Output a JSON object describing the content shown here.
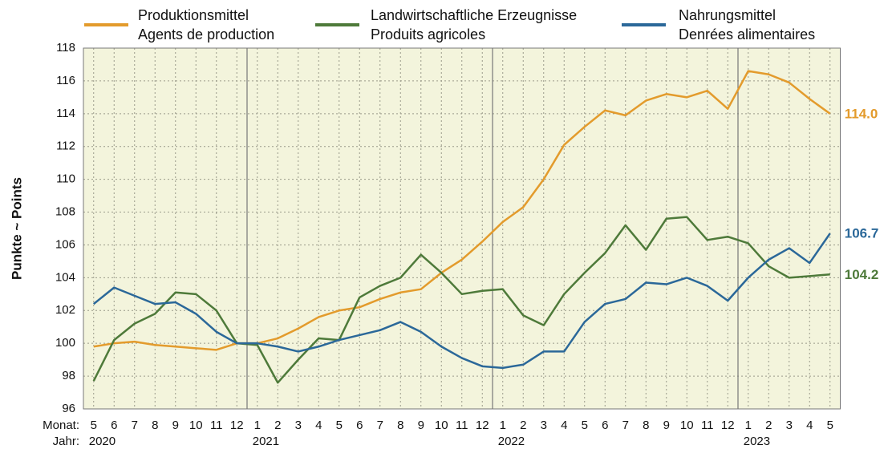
{
  "chart_data": {
    "type": "line",
    "ylabel": "Punkte  ~  Points",
    "xlabel_month": "Monat:",
    "xlabel_year": "Jahr:",
    "categories": [
      5,
      6,
      7,
      8,
      9,
      10,
      11,
      12,
      1,
      2,
      3,
      4,
      5,
      6,
      7,
      8,
      9,
      10,
      11,
      12,
      1,
      2,
      3,
      4,
      5,
      6,
      7,
      8,
      9,
      10,
      11,
      12,
      1,
      2,
      3,
      4,
      5
    ],
    "years": [
      "2020",
      null,
      null,
      null,
      null,
      null,
      null,
      null,
      "2021",
      null,
      null,
      null,
      null,
      null,
      null,
      null,
      null,
      null,
      null,
      null,
      "2022",
      null,
      null,
      null,
      null,
      null,
      null,
      null,
      null,
      null,
      null,
      null,
      "2023",
      null,
      null,
      null,
      null
    ],
    "ylim": [
      96,
      118
    ],
    "yticks": [
      96,
      98,
      100,
      102,
      104,
      106,
      108,
      110,
      112,
      114,
      116,
      118
    ],
    "grid": true,
    "series": [
      {
        "name": "Produktionsmittel",
        "name_fr": "Agents de production",
        "color": "#e39b2c",
        "values": [
          99.8,
          100.0,
          100.1,
          99.9,
          99.8,
          99.7,
          99.6,
          100.0,
          100.0,
          100.3,
          100.9,
          101.6,
          102.0,
          102.2,
          102.7,
          103.1,
          103.3,
          104.3,
          105.1,
          106.2,
          107.4,
          108.3,
          110.0,
          112.1,
          113.2,
          114.2,
          113.9,
          114.8,
          115.2,
          115.0,
          115.4,
          114.3,
          116.6,
          116.4,
          115.9,
          114.9,
          114.0
        ],
        "value_labels": [
          null,
          null,
          null,
          null,
          null,
          null,
          null,
          null,
          null,
          null,
          null,
          null,
          null,
          null,
          null,
          null,
          null,
          null,
          null,
          null,
          null,
          null,
          null,
          null,
          null,
          null,
          null,
          null,
          null,
          null,
          null,
          null,
          null,
          null,
          null,
          null,
          "114.0"
        ]
      },
      {
        "name": "Landwirtschaftliche Erzeugnisse",
        "name_fr": "Produits agricoles",
        "color": "#4e7a3a",
        "values": [
          97.7,
          100.2,
          101.2,
          101.8,
          103.1,
          103.0,
          102.0,
          100.0,
          99.9,
          97.6,
          99.0,
          100.3,
          100.2,
          102.8,
          103.5,
          104.0,
          105.4,
          104.3,
          103.0,
          103.2,
          103.3,
          101.7,
          101.1,
          103.0,
          104.3,
          105.5,
          107.2,
          105.7,
          107.6,
          107.7,
          106.3,
          106.5,
          106.1,
          104.7,
          104.0,
          104.1,
          104.2
        ],
        "value_labels": [
          null,
          null,
          null,
          null,
          null,
          null,
          null,
          null,
          null,
          null,
          null,
          null,
          null,
          null,
          null,
          null,
          null,
          null,
          null,
          null,
          null,
          null,
          null,
          null,
          null,
          null,
          null,
          null,
          null,
          null,
          null,
          null,
          null,
          null,
          null,
          null,
          "104.2"
        ]
      },
      {
        "name": "Nahrungsmittel",
        "name_fr": "Denrées alimentaires",
        "color": "#2b6899",
        "values": [
          102.4,
          103.4,
          102.9,
          102.4,
          102.5,
          101.8,
          100.7,
          100.0,
          100.0,
          99.8,
          99.5,
          99.8,
          100.2,
          100.5,
          100.8,
          101.3,
          100.7,
          99.8,
          99.1,
          98.6,
          98.5,
          98.7,
          99.5,
          99.5,
          101.3,
          102.4,
          102.7,
          103.7,
          103.6,
          104.0,
          103.5,
          102.6,
          104.0,
          105.1,
          105.8,
          104.9,
          106.7
        ],
        "value_labels": [
          null,
          null,
          null,
          null,
          null,
          null,
          null,
          null,
          null,
          null,
          null,
          null,
          null,
          null,
          null,
          null,
          null,
          null,
          null,
          null,
          null,
          null,
          null,
          null,
          null,
          null,
          null,
          null,
          null,
          null,
          null,
          null,
          null,
          null,
          null,
          null,
          "106.7"
        ]
      }
    ]
  }
}
